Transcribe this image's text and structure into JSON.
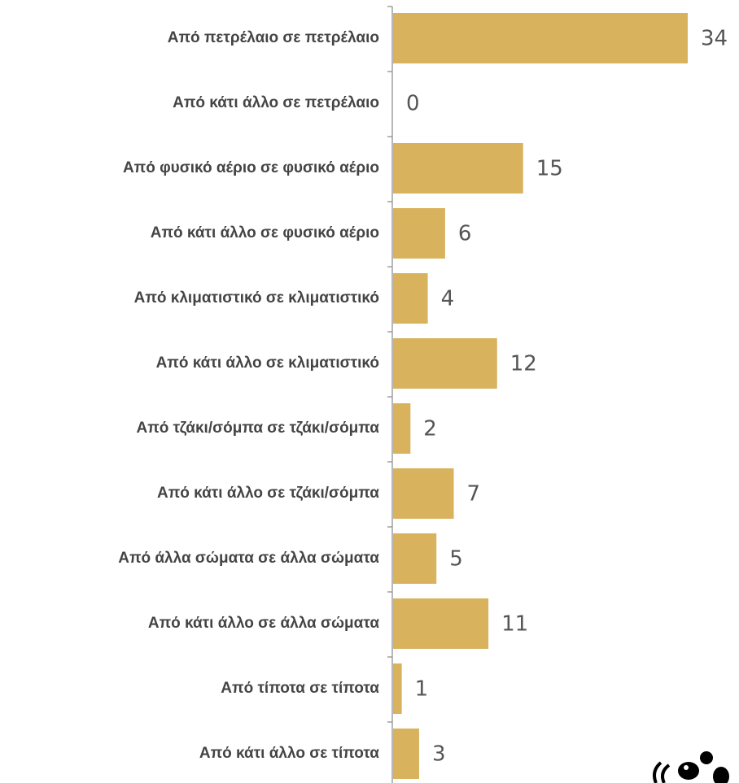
{
  "chart_data": {
    "type": "bar",
    "orientation": "horizontal",
    "categories": [
      "Από πετρέλαιο σε πετρέλαιο",
      "Από κάτι άλλο σε πετρέλαιο",
      "Από φυσικό αέριο σε φυσικό αέριο",
      "Από κάτι άλλο σε φυσικό αέριο",
      "Από κλιματιστικό σε κλιματιστικό",
      "Από κάτι άλλο σε κλιματιστικό",
      "Από τζάκι/σόμπα σε τζάκι/σόμπα",
      "Από κάτι άλλο σε τζάκι/σόμπα",
      "Από άλλα σώματα σε άλλα σώματα",
      "Από κάτι άλλο σε άλλα σώματα",
      "Από τίποτα σε τίποτα",
      "Από κάτι άλλο σε τίποτα"
    ],
    "values": [
      34,
      0,
      15,
      6,
      4,
      12,
      2,
      7,
      5,
      11,
      1,
      3
    ],
    "title": "",
    "xlabel": "",
    "ylabel": "",
    "xlim": [
      0,
      34
    ],
    "grid": false,
    "legend": "none",
    "bar_color": "#d8b25c",
    "axis_color": "#888888"
  },
  "logo": {
    "icon": "panda-logo-icon"
  }
}
